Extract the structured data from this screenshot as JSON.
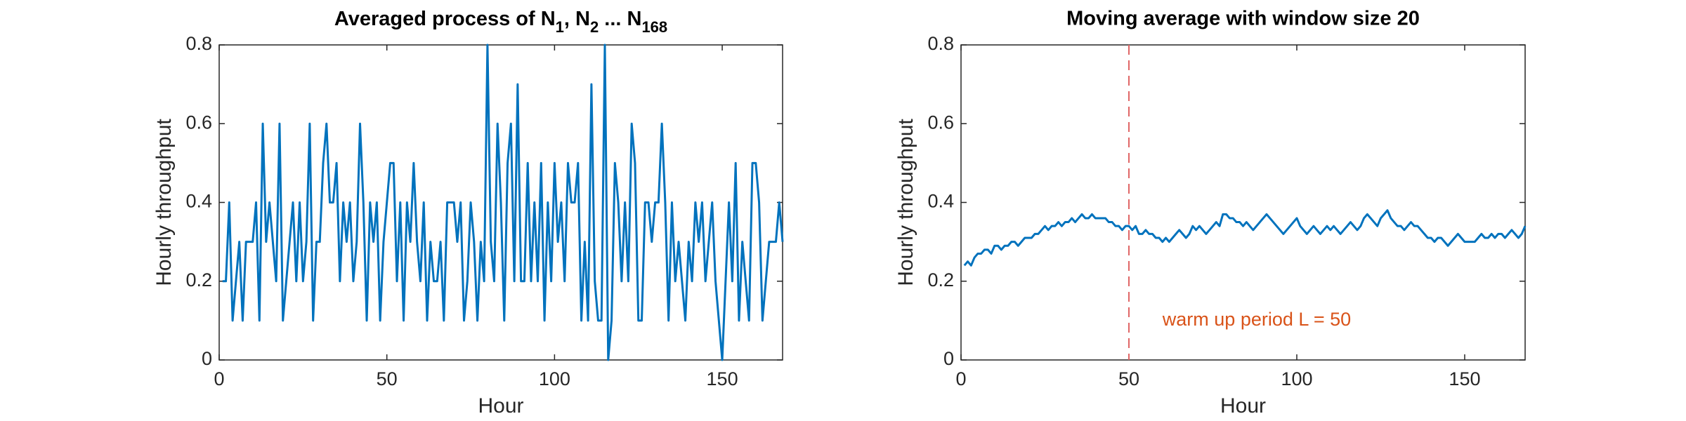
{
  "chart_data": [
    {
      "type": "line",
      "title": [
        {
          "text": "Averaged process of N"
        },
        {
          "text": "1",
          "sub": true
        },
        {
          "text": ", N"
        },
        {
          "text": "2",
          "sub": true
        },
        {
          "text": " ... N"
        },
        {
          "text": "168",
          "sub": true
        }
      ],
      "x_label": "Hour",
      "y_label": "Hourly throughput",
      "xlim": [
        0,
        168
      ],
      "xticks": [
        0,
        50,
        100,
        150
      ],
      "ylim": [
        0,
        0.8
      ],
      "yticks": [
        0,
        0.2,
        0.4,
        0.6,
        0.8
      ],
      "grid": false,
      "series": [
        {
          "color": "#0072bd",
          "x": [
            1,
            2,
            3,
            4,
            5,
            6,
            7,
            8,
            9,
            10,
            11,
            12,
            13,
            14,
            15,
            16,
            17,
            18,
            19,
            20,
            21,
            22,
            23,
            24,
            25,
            26,
            27,
            28,
            29,
            30,
            31,
            32,
            33,
            34,
            35,
            36,
            37,
            38,
            39,
            40,
            41,
            42,
            43,
            44,
            45,
            46,
            47,
            48,
            49,
            50,
            51,
            52,
            53,
            54,
            55,
            56,
            57,
            58,
            59,
            60,
            61,
            62,
            63,
            64,
            65,
            66,
            67,
            68,
            69,
            70,
            71,
            72,
            73,
            74,
            75,
            76,
            77,
            78,
            79,
            80,
            81,
            82,
            83,
            84,
            85,
            86,
            87,
            88,
            89,
            90,
            91,
            92,
            93,
            94,
            95,
            96,
            97,
            98,
            99,
            100,
            101,
            102,
            103,
            104,
            105,
            106,
            107,
            108,
            109,
            110,
            111,
            112,
            113,
            114,
            115,
            116,
            117,
            118,
            119,
            120,
            121,
            122,
            123,
            124,
            125,
            126,
            127,
            128,
            129,
            130,
            131,
            132,
            133,
            134,
            135,
            136,
            137,
            138,
            139,
            140,
            141,
            142,
            143,
            144,
            145,
            146,
            147,
            148,
            149,
            150,
            151,
            152,
            153,
            154,
            155,
            156,
            157,
            158,
            159,
            160,
            161,
            162,
            163,
            164,
            165,
            166,
            167,
            168
          ],
          "values": [
            0.2,
            0.2,
            0.4,
            0.1,
            0.2,
            0.3,
            0.1,
            0.3,
            0.3,
            0.3,
            0.4,
            0.1,
            0.6,
            0.3,
            0.4,
            0.3,
            0.2,
            0.6,
            0.1,
            0.2,
            0.3,
            0.4,
            0.2,
            0.4,
            0.2,
            0.3,
            0.6,
            0.1,
            0.3,
            0.3,
            0.5,
            0.6,
            0.4,
            0.4,
            0.5,
            0.2,
            0.4,
            0.3,
            0.4,
            0.2,
            0.3,
            0.6,
            0.4,
            0.1,
            0.4,
            0.3,
            0.4,
            0.1,
            0.3,
            0.4,
            0.5,
            0.5,
            0.2,
            0.4,
            0.1,
            0.4,
            0.3,
            0.5,
            0.3,
            0.2,
            0.4,
            0.1,
            0.3,
            0.2,
            0.2,
            0.3,
            0.1,
            0.4,
            0.4,
            0.4,
            0.3,
            0.4,
            0.1,
            0.2,
            0.4,
            0.3,
            0.1,
            0.3,
            0.2,
            0.8,
            0.3,
            0.2,
            0.6,
            0.4,
            0.1,
            0.5,
            0.6,
            0.2,
            0.7,
            0.2,
            0.2,
            0.5,
            0.2,
            0.4,
            0.2,
            0.5,
            0.1,
            0.4,
            0.2,
            0.5,
            0.3,
            0.4,
            0.2,
            0.5,
            0.4,
            0.4,
            0.5,
            0.1,
            0.3,
            0.1,
            0.7,
            0.2,
            0.1,
            0.1,
            0.8,
            0,
            0.1,
            0.5,
            0.4,
            0.2,
            0.4,
            0.2,
            0.6,
            0.5,
            0.1,
            0.1,
            0.4,
            0.4,
            0.3,
            0.4,
            0.4,
            0.6,
            0.4,
            0.1,
            0.4,
            0.2,
            0.3,
            0.2,
            0.1,
            0.3,
            0.2,
            0.4,
            0.3,
            0.4,
            0.2,
            0.3,
            0.4,
            0.2,
            0.1,
            0,
            0.2,
            0.4,
            0.2,
            0.5,
            0.1,
            0.3,
            0.2,
            0.1,
            0.5,
            0.5,
            0.4,
            0.1,
            0.2,
            0.3,
            0.3,
            0.3,
            0.4,
            0.3
          ]
        }
      ]
    },
    {
      "type": "line",
      "title": "Moving average with window size 20",
      "x_label": "Hour",
      "y_label": "Hourly throughput",
      "xlim": [
        0,
        168
      ],
      "xticks": [
        0,
        50,
        100,
        150
      ],
      "ylim": [
        0,
        0.8
      ],
      "yticks": [
        0,
        0.2,
        0.4,
        0.6,
        0.8
      ],
      "grid": false,
      "vline": {
        "x": 50,
        "color": "#e06666",
        "dashed": true
      },
      "annotation": {
        "text": "warm up period L = 50",
        "x": 60,
        "y": 0.1,
        "color": "#d95319"
      },
      "series": [
        {
          "color": "#0072bd",
          "x": [
            1,
            2,
            3,
            4,
            5,
            6,
            7,
            8,
            9,
            10,
            11,
            12,
            13,
            14,
            15,
            16,
            17,
            18,
            19,
            20,
            21,
            22,
            23,
            24,
            25,
            26,
            27,
            28,
            29,
            30,
            31,
            32,
            33,
            34,
            35,
            36,
            37,
            38,
            39,
            40,
            41,
            42,
            43,
            44,
            45,
            46,
            47,
            48,
            49,
            50,
            51,
            52,
            53,
            54,
            55,
            56,
            57,
            58,
            59,
            60,
            61,
            62,
            63,
            64,
            65,
            66,
            67,
            68,
            69,
            70,
            71,
            72,
            73,
            74,
            75,
            76,
            77,
            78,
            79,
            80,
            81,
            82,
            83,
            84,
            85,
            86,
            87,
            88,
            89,
            90,
            91,
            92,
            93,
            94,
            95,
            96,
            97,
            98,
            99,
            100,
            101,
            102,
            103,
            104,
            105,
            106,
            107,
            108,
            109,
            110,
            111,
            112,
            113,
            114,
            115,
            116,
            117,
            118,
            119,
            120,
            121,
            122,
            123,
            124,
            125,
            126,
            127,
            128,
            129,
            130,
            131,
            132,
            133,
            134,
            135,
            136,
            137,
            138,
            139,
            140,
            141,
            142,
            143,
            144,
            145,
            146,
            147,
            148,
            149,
            150,
            151,
            152,
            153,
            154,
            155,
            156,
            157,
            158,
            159,
            160,
            161,
            162,
            163,
            164,
            165,
            166,
            167,
            168
          ],
          "values": [
            0.24,
            0.25,
            0.24,
            0.26,
            0.27,
            0.27,
            0.28,
            0.28,
            0.27,
            0.29,
            0.29,
            0.28,
            0.29,
            0.29,
            0.3,
            0.3,
            0.29,
            0.3,
            0.31,
            0.31,
            0.31,
            0.32,
            0.32,
            0.33,
            0.34,
            0.33,
            0.34,
            0.34,
            0.35,
            0.34,
            0.35,
            0.35,
            0.36,
            0.35,
            0.36,
            0.37,
            0.36,
            0.36,
            0.37,
            0.36,
            0.36,
            0.36,
            0.36,
            0.35,
            0.35,
            0.34,
            0.34,
            0.33,
            0.34,
            0.34,
            0.33,
            0.34,
            0.32,
            0.32,
            0.33,
            0.32,
            0.32,
            0.31,
            0.31,
            0.3,
            0.31,
            0.3,
            0.31,
            0.32,
            0.33,
            0.32,
            0.31,
            0.32,
            0.34,
            0.33,
            0.34,
            0.33,
            0.32,
            0.33,
            0.34,
            0.35,
            0.34,
            0.37,
            0.37,
            0.36,
            0.36,
            0.35,
            0.35,
            0.34,
            0.35,
            0.34,
            0.33,
            0.34,
            0.35,
            0.36,
            0.37,
            0.36,
            0.35,
            0.34,
            0.33,
            0.32,
            0.33,
            0.34,
            0.35,
            0.36,
            0.34,
            0.33,
            0.32,
            0.33,
            0.34,
            0.33,
            0.32,
            0.33,
            0.34,
            0.33,
            0.34,
            0.33,
            0.32,
            0.33,
            0.34,
            0.35,
            0.34,
            0.33,
            0.34,
            0.36,
            0.37,
            0.36,
            0.35,
            0.34,
            0.36,
            0.37,
            0.38,
            0.36,
            0.35,
            0.34,
            0.34,
            0.33,
            0.34,
            0.35,
            0.34,
            0.34,
            0.33,
            0.32,
            0.31,
            0.31,
            0.3,
            0.31,
            0.31,
            0.3,
            0.29,
            0.3,
            0.31,
            0.32,
            0.31,
            0.3,
            0.3,
            0.3,
            0.3,
            0.31,
            0.32,
            0.31,
            0.31,
            0.32,
            0.31,
            0.32,
            0.32,
            0.31,
            0.32,
            0.33,
            0.32,
            0.31,
            0.32,
            0.34
          ]
        }
      ]
    }
  ]
}
